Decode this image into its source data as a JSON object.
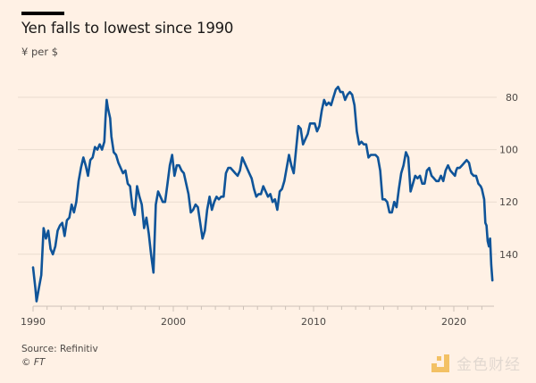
{
  "chart_data": {
    "type": "line",
    "title": "Yen falls to lowest since 1990",
    "subtitle": "¥ per $",
    "xlabel": "",
    "ylabel": "",
    "x_ticks": [
      "1990",
      "2000",
      "2010",
      "2020"
    ],
    "y_ticks": [
      "80",
      "100",
      "120",
      "140"
    ],
    "ylim": [
      160,
      75
    ],
    "y_inverted": true,
    "y_axis_side": "right",
    "grid": "horizontal",
    "line_color": "#0f5499",
    "points": [
      [
        "1990-01",
        145
      ],
      [
        "1990-03",
        153
      ],
      [
        "1990-04",
        158
      ],
      [
        "1990-06",
        153
      ],
      [
        "1990-08",
        148
      ],
      [
        "1990-10",
        130
      ],
      [
        "1990-12",
        134
      ],
      [
        "1991-02",
        131
      ],
      [
        "1991-04",
        138
      ],
      [
        "1991-06",
        140
      ],
      [
        "1991-08",
        137
      ],
      [
        "1991-10",
        131
      ],
      [
        "1991-12",
        129
      ],
      [
        "1992-02",
        128
      ],
      [
        "1992-04",
        133
      ],
      [
        "1992-06",
        127
      ],
      [
        "1992-08",
        126
      ],
      [
        "1992-10",
        121
      ],
      [
        "1992-12",
        124
      ],
      [
        "1993-02",
        120
      ],
      [
        "1993-04",
        112
      ],
      [
        "1993-06",
        107
      ],
      [
        "1993-08",
        103
      ],
      [
        "1993-10",
        106
      ],
      [
        "1993-12",
        110
      ],
      [
        "1994-02",
        104
      ],
      [
        "1994-04",
        103
      ],
      [
        "1994-06",
        99
      ],
      [
        "1994-08",
        100
      ],
      [
        "1994-10",
        98
      ],
      [
        "1994-12",
        100
      ],
      [
        "1995-02",
        97
      ],
      [
        "1995-03",
        88
      ],
      [
        "1995-04",
        81
      ],
      [
        "1995-05",
        84
      ],
      [
        "1995-07",
        88
      ],
      [
        "1995-08",
        95
      ],
      [
        "1995-10",
        101
      ],
      [
        "1995-12",
        102
      ],
      [
        "1996-02",
        105
      ],
      [
        "1996-04",
        107
      ],
      [
        "1996-06",
        109
      ],
      [
        "1996-08",
        108
      ],
      [
        "1996-10",
        113
      ],
      [
        "1996-12",
        114
      ],
      [
        "1997-02",
        122
      ],
      [
        "1997-04",
        125
      ],
      [
        "1997-06",
        114
      ],
      [
        "1997-08",
        118
      ],
      [
        "1997-10",
        121
      ],
      [
        "1997-12",
        130
      ],
      [
        "1998-02",
        126
      ],
      [
        "1998-04",
        132
      ],
      [
        "1998-06",
        140
      ],
      [
        "1998-08",
        147
      ],
      [
        "1998-10",
        121
      ],
      [
        "1998-12",
        116
      ],
      [
        "1999-02",
        118
      ],
      [
        "1999-04",
        120
      ],
      [
        "1999-06",
        120
      ],
      [
        "1999-08",
        113
      ],
      [
        "1999-10",
        106
      ],
      [
        "1999-12",
        102
      ],
      [
        "2000-02",
        110
      ],
      [
        "2000-04",
        106
      ],
      [
        "2000-06",
        106
      ],
      [
        "2000-08",
        108
      ],
      [
        "2000-10",
        109
      ],
      [
        "2000-12",
        113
      ],
      [
        "2001-02",
        117
      ],
      [
        "2001-04",
        124
      ],
      [
        "2001-06",
        123
      ],
      [
        "2001-08",
        121
      ],
      [
        "2001-10",
        122
      ],
      [
        "2001-12",
        128
      ],
      [
        "2002-02",
        134
      ],
      [
        "2002-04",
        131
      ],
      [
        "2002-06",
        123
      ],
      [
        "2002-08",
        118
      ],
      [
        "2002-10",
        123
      ],
      [
        "2002-12",
        120
      ],
      [
        "2003-02",
        118
      ],
      [
        "2003-04",
        119
      ],
      [
        "2003-06",
        118
      ],
      [
        "2003-08",
        118
      ],
      [
        "2003-10",
        109
      ],
      [
        "2003-12",
        107
      ],
      [
        "2004-02",
        107
      ],
      [
        "2004-04",
        108
      ],
      [
        "2004-06",
        109
      ],
      [
        "2004-08",
        110
      ],
      [
        "2004-10",
        108
      ],
      [
        "2004-12",
        103
      ],
      [
        "2005-02",
        105
      ],
      [
        "2005-04",
        107
      ],
      [
        "2005-06",
        109
      ],
      [
        "2005-08",
        111
      ],
      [
        "2005-10",
        115
      ],
      [
        "2005-12",
        118
      ],
      [
        "2006-02",
        117
      ],
      [
        "2006-04",
        117
      ],
      [
        "2006-06",
        114
      ],
      [
        "2006-08",
        116
      ],
      [
        "2006-10",
        118
      ],
      [
        "2006-12",
        117
      ],
      [
        "2007-02",
        120
      ],
      [
        "2007-04",
        119
      ],
      [
        "2007-06",
        123
      ],
      [
        "2007-08",
        116
      ],
      [
        "2007-10",
        115
      ],
      [
        "2007-12",
        112
      ],
      [
        "2008-02",
        107
      ],
      [
        "2008-04",
        102
      ],
      [
        "2008-06",
        106
      ],
      [
        "2008-08",
        109
      ],
      [
        "2008-10",
        100
      ],
      [
        "2008-12",
        91
      ],
      [
        "2009-02",
        92
      ],
      [
        "2009-04",
        98
      ],
      [
        "2009-06",
        96
      ],
      [
        "2009-08",
        94
      ],
      [
        "2009-10",
        90
      ],
      [
        "2009-12",
        90
      ],
      [
        "2010-02",
        90
      ],
      [
        "2010-04",
        93
      ],
      [
        "2010-06",
        91
      ],
      [
        "2010-08",
        85
      ],
      [
        "2010-10",
        81
      ],
      [
        "2010-12",
        83
      ],
      [
        "2011-02",
        82
      ],
      [
        "2011-04",
        83
      ],
      [
        "2011-06",
        80
      ],
      [
        "2011-08",
        77
      ],
      [
        "2011-10",
        76
      ],
      [
        "2011-12",
        78
      ],
      [
        "2012-02",
        78
      ],
      [
        "2012-04",
        81
      ],
      [
        "2012-06",
        79
      ],
      [
        "2012-08",
        78
      ],
      [
        "2012-10",
        79
      ],
      [
        "2012-12",
        83
      ],
      [
        "2013-02",
        93
      ],
      [
        "2013-04",
        98
      ],
      [
        "2013-06",
        97
      ],
      [
        "2013-08",
        98
      ],
      [
        "2013-10",
        98
      ],
      [
        "2013-12",
        103
      ],
      [
        "2014-02",
        102
      ],
      [
        "2014-04",
        102
      ],
      [
        "2014-06",
        102
      ],
      [
        "2014-08",
        103
      ],
      [
        "2014-10",
        108
      ],
      [
        "2014-12",
        119
      ],
      [
        "2015-02",
        119
      ],
      [
        "2015-04",
        120
      ],
      [
        "2015-06",
        124
      ],
      [
        "2015-08",
        124
      ],
      [
        "2015-10",
        120
      ],
      [
        "2015-12",
        122
      ],
      [
        "2016-02",
        115
      ],
      [
        "2016-04",
        109
      ],
      [
        "2016-06",
        106
      ],
      [
        "2016-08",
        101
      ],
      [
        "2016-10",
        103
      ],
      [
        "2016-12",
        116
      ],
      [
        "2017-02",
        113
      ],
      [
        "2017-04",
        110
      ],
      [
        "2017-06",
        111
      ],
      [
        "2017-08",
        110
      ],
      [
        "2017-10",
        113
      ],
      [
        "2017-12",
        113
      ],
      [
        "2018-02",
        108
      ],
      [
        "2018-04",
        107
      ],
      [
        "2018-06",
        110
      ],
      [
        "2018-08",
        111
      ],
      [
        "2018-10",
        112
      ],
      [
        "2018-12",
        112
      ],
      [
        "2019-02",
        110
      ],
      [
        "2019-04",
        112
      ],
      [
        "2019-06",
        108
      ],
      [
        "2019-08",
        106
      ],
      [
        "2019-10",
        108
      ],
      [
        "2019-12",
        109
      ],
      [
        "2020-02",
        110
      ],
      [
        "2020-03",
        108
      ],
      [
        "2020-04",
        107
      ],
      [
        "2020-06",
        107
      ],
      [
        "2020-08",
        106
      ],
      [
        "2020-10",
        105
      ],
      [
        "2020-12",
        104
      ],
      [
        "2021-02",
        105
      ],
      [
        "2021-04",
        109
      ],
      [
        "2021-06",
        110
      ],
      [
        "2021-08",
        110
      ],
      [
        "2021-10",
        113
      ],
      [
        "2021-12",
        114
      ],
      [
        "2022-01",
        115
      ],
      [
        "2022-03",
        119
      ],
      [
        "2022-04",
        128
      ],
      [
        "2022-05",
        129
      ],
      [
        "2022-06",
        135
      ],
      [
        "2022-07",
        137
      ],
      [
        "2022-08",
        134
      ],
      [
        "2022-09",
        144
      ],
      [
        "2022-10",
        150
      ]
    ]
  },
  "footer": {
    "source": "Source: Refinitiv",
    "copyright": "© FT"
  },
  "watermark": {
    "text": "金色财经",
    "accent": "#f0b23a"
  }
}
